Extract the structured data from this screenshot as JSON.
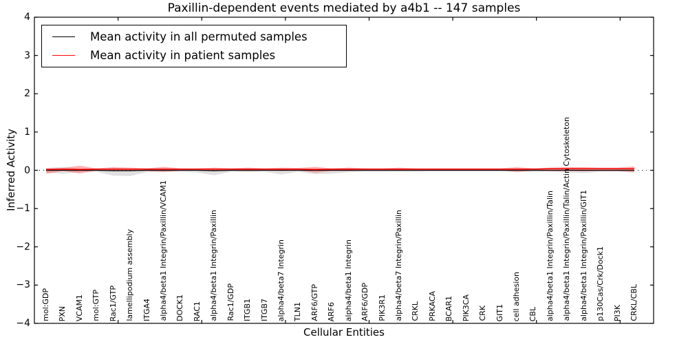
{
  "chart_data": {
    "type": "line",
    "title": "Paxillin-dependent events mediated by a4b1 -- 147 samples",
    "xlabel": "Cellular Entities",
    "ylabel": "Inferred Activity",
    "ylim": [
      -4,
      4
    ],
    "xlim": [
      0,
      37
    ],
    "y_ticks": [
      -4,
      -3,
      -2,
      -1,
      0,
      1,
      2,
      3,
      4
    ],
    "x_major_ticks": [
      5,
      10,
      15,
      20,
      25,
      30,
      35
    ],
    "grid": false,
    "zero_line_style": "dotted",
    "legend_position": "upper left",
    "colors": {
      "permuted_line": "#000000",
      "permuted_band": "#999999",
      "patient_line": "#ff0000",
      "patient_band": "#ff2222",
      "axis": "#000000"
    },
    "entities": [
      "mol:GDP",
      "PXN",
      "VCAM1",
      "mol:GTP",
      "Rac1/GTP",
      "lamellipodium assembly",
      "ITGA4",
      "alpha4/beta1 Integrin/Paxillin/VCAM1",
      "DOCK1",
      "RAC1",
      "alpha4/beta1 Integrin/Paxillin",
      "Rac1/GDP",
      "ITGB1",
      "ITGB7",
      "alpha4/beta7 Integrin",
      "TLN1",
      "ARF6/GTP",
      "ARF6",
      "alpha4/beta1 Integrin",
      "ARF6/GDP",
      "PIK3R1",
      "alpha4/beta7 Integrin/Paxillin",
      "CRKL",
      "PRKACA",
      "BCAR1",
      "PIK3CA",
      "CRK",
      "GIT1",
      "cell adhesion",
      "CBL",
      "alpha4/beta1 Integrin/Paxillin/Talin",
      "alpha4/beta1 Integrin/Paxillin/Talin/Actin Cytoskeleton",
      "alpha4/beta1 Integrin/Paxillin/GIT1",
      "p130Cas/Crk/Dock1",
      "PI3K",
      "CRKL/CBL"
    ],
    "series": [
      {
        "name": "Mean activity in all permuted samples",
        "mean": [
          0,
          0,
          0,
          0,
          -0.01,
          -0.01,
          0,
          0,
          0,
          0,
          -0.01,
          0,
          0,
          0,
          0,
          0,
          0,
          0,
          0,
          0,
          0,
          0,
          0,
          0,
          0,
          0,
          0,
          0,
          0,
          0,
          0,
          0,
          0,
          0,
          0,
          0
        ],
        "upper": [
          0.06,
          0.09,
          0.05,
          0.04,
          0.06,
          0.05,
          0.05,
          0.05,
          0.04,
          0.04,
          0.04,
          0.04,
          0.05,
          0.04,
          0.04,
          0.04,
          0.04,
          0.04,
          0.05,
          0.04,
          0.04,
          0.04,
          0.04,
          0.03,
          0.03,
          0.03,
          0.03,
          0.03,
          0.05,
          0.04,
          0.04,
          0.04,
          0.04,
          0.04,
          0.04,
          0.06
        ],
        "lower": [
          -0.06,
          -0.09,
          -0.05,
          -0.04,
          -0.14,
          -0.15,
          -0.05,
          -0.05,
          -0.04,
          -0.06,
          -0.13,
          -0.04,
          -0.05,
          -0.04,
          -0.11,
          -0.04,
          -0.1,
          -0.09,
          -0.05,
          -0.04,
          -0.04,
          -0.04,
          -0.04,
          -0.03,
          -0.03,
          -0.03,
          -0.03,
          -0.03,
          -0.05,
          -0.04,
          -0.04,
          -0.06,
          -0.07,
          -0.04,
          -0.04,
          -0.06
        ]
      },
      {
        "name": "Mean activity in patient samples",
        "mean": [
          0.02,
          0.03,
          0.02,
          0.03,
          0.03,
          0.03,
          0.03,
          0.03,
          0.03,
          0.03,
          0.03,
          0.03,
          0.03,
          0.03,
          0.03,
          0.03,
          0.02,
          0.03,
          0.03,
          0.03,
          0.03,
          0.03,
          0.03,
          0.03,
          0.03,
          0.03,
          0.03,
          0.03,
          0.03,
          0.03,
          0.04,
          0.04,
          0.04,
          0.04,
          0.04,
          0.04
        ],
        "upper": [
          0.05,
          0.06,
          0.12,
          0.05,
          0.08,
          0.07,
          0.05,
          0.09,
          0.05,
          0.05,
          0.07,
          0.05,
          0.07,
          0.05,
          0.07,
          0.06,
          0.09,
          0.05,
          0.07,
          0.05,
          0.05,
          0.07,
          0.05,
          0.05,
          0.05,
          0.05,
          0.05,
          0.05,
          0.08,
          0.05,
          0.07,
          0.08,
          0.08,
          0.07,
          0.07,
          0.1
        ],
        "lower": [
          -0.09,
          -0.02,
          -0.08,
          -0.01,
          -0.02,
          -0.01,
          -0.02,
          -0.04,
          -0.01,
          -0.01,
          -0.02,
          -0.01,
          -0.02,
          -0.01,
          -0.02,
          -0.01,
          -0.06,
          -0.02,
          -0.02,
          -0.01,
          -0.01,
          -0.01,
          -0.01,
          0,
          0,
          0,
          0,
          0,
          -0.04,
          -0.01,
          -0.02,
          -0.02,
          -0.03,
          -0.02,
          -0.02,
          -0.05
        ]
      }
    ],
    "legend": [
      {
        "label": "Mean activity in all permuted samples",
        "color": "#000000"
      },
      {
        "label": "Mean activity in patient samples",
        "color": "#ff0000"
      }
    ]
  }
}
